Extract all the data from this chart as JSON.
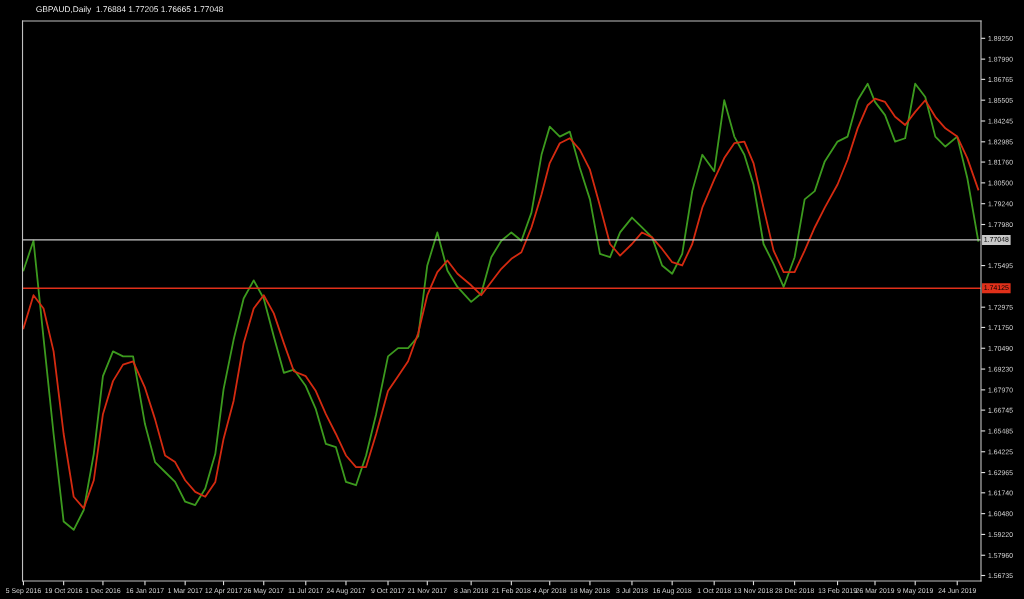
{
  "chart_data": {
    "type": "line",
    "title": "GBPAUD,Daily  1.76884 1.77205 1.76665 1.77048",
    "x": [
      "2016-09-05",
      "2016-09-16",
      "2016-09-27",
      "2016-10-08",
      "2016-10-19",
      "2016-10-30",
      "2016-11-10",
      "2016-11-21",
      "2016-12-01",
      "2016-12-12",
      "2016-12-23",
      "2017-01-03",
      "2017-01-16",
      "2017-01-27",
      "2017-02-07",
      "2017-02-18",
      "2017-03-01",
      "2017-03-12",
      "2017-03-23",
      "2017-04-03",
      "2017-04-12",
      "2017-04-23",
      "2017-05-04",
      "2017-05-15",
      "2017-05-26",
      "2017-06-06",
      "2017-06-17",
      "2017-06-28",
      "2017-07-11",
      "2017-07-22",
      "2017-08-02",
      "2017-08-13",
      "2017-08-24",
      "2017-09-04",
      "2017-09-15",
      "2017-09-26",
      "2017-10-09",
      "2017-10-20",
      "2017-10-31",
      "2017-11-11",
      "2017-11-21",
      "2017-12-02",
      "2017-12-13",
      "2017-12-24",
      "2018-01-08",
      "2018-01-19",
      "2018-01-30",
      "2018-02-10",
      "2018-02-21",
      "2018-03-04",
      "2018-03-15",
      "2018-03-26",
      "2018-04-04",
      "2018-04-15",
      "2018-04-26",
      "2018-05-07",
      "2018-05-18",
      "2018-05-29",
      "2018-06-09",
      "2018-06-20",
      "2018-07-03",
      "2018-07-14",
      "2018-07-25",
      "2018-08-05",
      "2018-08-16",
      "2018-08-27",
      "2018-09-07",
      "2018-09-18",
      "2018-10-01",
      "2018-10-12",
      "2018-10-23",
      "2018-11-03",
      "2018-11-13",
      "2018-11-24",
      "2018-12-05",
      "2018-12-16",
      "2018-12-28",
      "2019-01-08",
      "2019-01-19",
      "2019-01-30",
      "2019-02-13",
      "2019-02-24",
      "2019-03-07",
      "2019-03-18",
      "2019-03-26",
      "2019-04-06",
      "2019-04-17",
      "2019-04-28",
      "2019-05-09",
      "2019-05-20",
      "2019-05-31",
      "2019-06-11",
      "2019-06-24",
      "2019-07-05",
      "2019-07-17"
    ],
    "series": [
      {
        "color": "#3c9a1e",
        "values": [
          1.752,
          1.77,
          1.711,
          1.653,
          1.6,
          1.595,
          1.607,
          1.641,
          1.688,
          1.703,
          1.7,
          1.7,
          1.659,
          1.636,
          1.63,
          1.624,
          1.612,
          1.61,
          1.62,
          1.641,
          1.68,
          1.71,
          1.735,
          1.746,
          1.735,
          1.712,
          1.69,
          1.692,
          1.682,
          1.668,
          1.647,
          1.645,
          1.624,
          1.622,
          1.64,
          1.665,
          1.7,
          1.705,
          1.705,
          1.712,
          1.755,
          1.775,
          1.752,
          1.742,
          1.733,
          1.738,
          1.76,
          1.77,
          1.775,
          1.77,
          1.787,
          1.822,
          1.839,
          1.833,
          1.836,
          1.814,
          1.795,
          1.762,
          1.76,
          1.775,
          1.784,
          1.778,
          1.772,
          1.755,
          1.75,
          1.762,
          1.8,
          1.822,
          1.812,
          1.855,
          1.833,
          1.822,
          1.804,
          1.768,
          1.756,
          1.742,
          1.76,
          1.795,
          1.8,
          1.818,
          1.83,
          1.833,
          1.855,
          1.865,
          1.854,
          1.846,
          1.83,
          1.832,
          1.865,
          1.857,
          1.833,
          1.827,
          1.833,
          1.808,
          1.77
        ]
      },
      {
        "color": "#d42a10",
        "values": [
          1.717,
          1.737,
          1.729,
          1.703,
          1.653,
          1.615,
          1.608,
          1.625,
          1.665,
          1.685,
          1.695,
          1.697,
          1.681,
          1.662,
          1.64,
          1.636,
          1.625,
          1.618,
          1.615,
          1.624,
          1.65,
          1.673,
          1.708,
          1.729,
          1.737,
          1.726,
          1.708,
          1.691,
          1.688,
          1.679,
          1.665,
          1.653,
          1.64,
          1.633,
          1.633,
          1.653,
          1.679,
          1.688,
          1.697,
          1.714,
          1.737,
          1.751,
          1.758,
          1.75,
          1.743,
          1.737,
          1.745,
          1.753,
          1.759,
          1.763,
          1.778,
          1.798,
          1.817,
          1.829,
          1.832,
          1.825,
          1.813,
          1.791,
          1.768,
          1.761,
          1.768,
          1.775,
          1.772,
          1.765,
          1.757,
          1.755,
          1.768,
          1.79,
          1.807,
          1.82,
          1.829,
          1.83,
          1.817,
          1.79,
          1.764,
          1.751,
          1.751,
          1.764,
          1.778,
          1.79,
          1.804,
          1.819,
          1.838,
          1.852,
          1.856,
          1.854,
          1.845,
          1.84,
          1.848,
          1.855,
          1.845,
          1.838,
          1.833,
          1.82,
          1.801
        ]
      }
    ],
    "xlim": [
      "2016-09-04",
      "2019-07-20"
    ],
    "xticks": [
      {
        "value": "2016-09-05",
        "label": "5 Sep 2016"
      },
      {
        "value": "2016-10-19",
        "label": "19 Oct 2016"
      },
      {
        "value": "2016-12-01",
        "label": "1 Dec 2016"
      },
      {
        "value": "2017-01-16",
        "label": "16 Jan 2017"
      },
      {
        "value": "2017-03-01",
        "label": "1 Mar 2017"
      },
      {
        "value": "2017-04-12",
        "label": "12 Apr 2017"
      },
      {
        "value": "2017-05-26",
        "label": "26 May 2017"
      },
      {
        "value": "2017-07-11",
        "label": "11 Jul 2017"
      },
      {
        "value": "2017-08-24",
        "label": "24 Aug 2017"
      },
      {
        "value": "2017-10-09",
        "label": "9 Oct 2017"
      },
      {
        "value": "2017-11-21",
        "label": "21 Nov 2017"
      },
      {
        "value": "2018-01-08",
        "label": "8 Jan 2018"
      },
      {
        "value": "2018-02-21",
        "label": "21 Feb 2018"
      },
      {
        "value": "2018-04-04",
        "label": "4 Apr 2018"
      },
      {
        "value": "2018-05-18",
        "label": "18 May 2018"
      },
      {
        "value": "2018-07-03",
        "label": "3 Jul 2018"
      },
      {
        "value": "2018-08-16",
        "label": "16 Aug 2018"
      },
      {
        "value": "2018-10-01",
        "label": "1 Oct 2018"
      },
      {
        "value": "2018-11-13",
        "label": "13 Nov 2018"
      },
      {
        "value": "2018-12-28",
        "label": "28 Dec 2018"
      },
      {
        "value": "2019-02-13",
        "label": "13 Feb 2019"
      },
      {
        "value": "2019-03-26",
        "label": "26 Mar 2019"
      },
      {
        "value": "2019-05-09",
        "label": "9 May 2019"
      },
      {
        "value": "2019-06-24",
        "label": "24 Jun 2019"
      }
    ],
    "ylim": [
      1.564,
      1.903
    ],
    "yticks": [
      {
        "value": 1.8925,
        "label": "1.89250"
      },
      {
        "value": 1.8799,
        "label": "1.87990"
      },
      {
        "value": 1.86765,
        "label": "1.86765"
      },
      {
        "value": 1.85505,
        "label": "1.85505"
      },
      {
        "value": 1.84245,
        "label": "1.84245"
      },
      {
        "value": 1.82985,
        "label": "1.82985"
      },
      {
        "value": 1.8176,
        "label": "1.81760"
      },
      {
        "value": 1.805,
        "label": "1.80500"
      },
      {
        "value": 1.7924,
        "label": "1.79240"
      },
      {
        "value": 1.7798,
        "label": "1.77980"
      },
      {
        "value": 1.75495,
        "label": "1.75495"
      },
      {
        "value": 1.72975,
        "label": "1.72975"
      },
      {
        "value": 1.7175,
        "label": "1.71750"
      },
      {
        "value": 1.7049,
        "label": "1.70490"
      },
      {
        "value": 1.6923,
        "label": "1.69230"
      },
      {
        "value": 1.6797,
        "label": "1.67970"
      },
      {
        "value": 1.66745,
        "label": "1.66745"
      },
      {
        "value": 1.65485,
        "label": "1.65485"
      },
      {
        "value": 1.64225,
        "label": "1.64225"
      },
      {
        "value": 1.62965,
        "label": "1.62965"
      },
      {
        "value": 1.6174,
        "label": "1.61740"
      },
      {
        "value": 1.6048,
        "label": "1.60480"
      },
      {
        "value": 1.5922,
        "label": "1.59220"
      },
      {
        "value": 1.5796,
        "label": "1.57960"
      },
      {
        "value": 1.56735,
        "label": "1.56735"
      }
    ],
    "ref_lines": [
      {
        "axis": "y",
        "value": 1.77048,
        "label": "1.77048",
        "color": "#c8c8c8"
      },
      {
        "axis": "y",
        "value": 1.74125,
        "label": "1.74125",
        "color": "#e0301a"
      }
    ],
    "grid": false,
    "legend": false,
    "marker": "none",
    "line_style": "solid"
  }
}
